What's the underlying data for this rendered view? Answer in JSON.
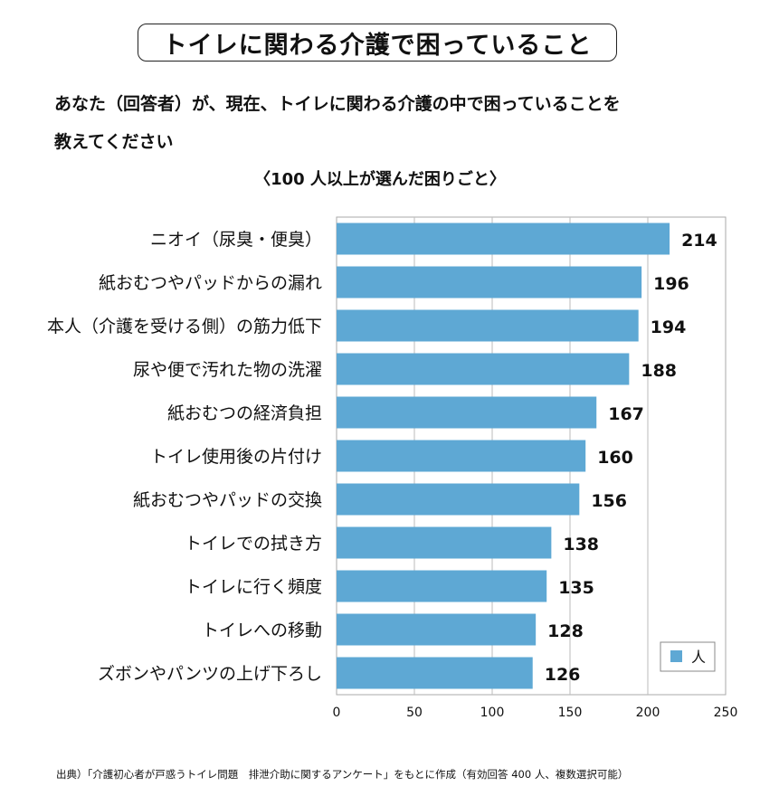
{
  "header": {
    "title": "トイレに関わる介護で困っていること",
    "question_line1": "あなた（回答者）が、現在、トイレに関わる介護の中で困っていることを",
    "question_line2": "教えてください"
  },
  "chart_data": {
    "type": "bar",
    "orientation": "horizontal",
    "title": "〈100 人以上が選んだ困りごと〉",
    "categories": [
      "ニオイ（尿臭・便臭）",
      "紙おむつやパッドからの漏れ",
      "本人（介護を受ける側）の筋力低下",
      "尿や便で汚れた物の洗濯",
      "紙おむつの経済負担",
      "トイレ使用後の片付け",
      "紙おむつやパッドの交換",
      "トイレでの拭き方",
      "トイレに行く頻度",
      "トイレへの移動",
      "ズボンやパンツの上げ下ろし"
    ],
    "series": [
      {
        "name": "人",
        "values": [
          214,
          196,
          194,
          188,
          167,
          160,
          156,
          138,
          135,
          128,
          126
        ]
      }
    ],
    "xlim": [
      0,
      250
    ],
    "xticks": [
      0,
      50,
      100,
      150,
      200,
      250
    ],
    "grid": true,
    "legend": "bottom-right",
    "bar_color": "#5ea8d4"
  },
  "footer": {
    "source": "出典）「介護初心者が戸惑うトイレ問題　排泄介助に関するアンケート」をもとに作成（有効回答 400 人、複数選択可能）"
  }
}
